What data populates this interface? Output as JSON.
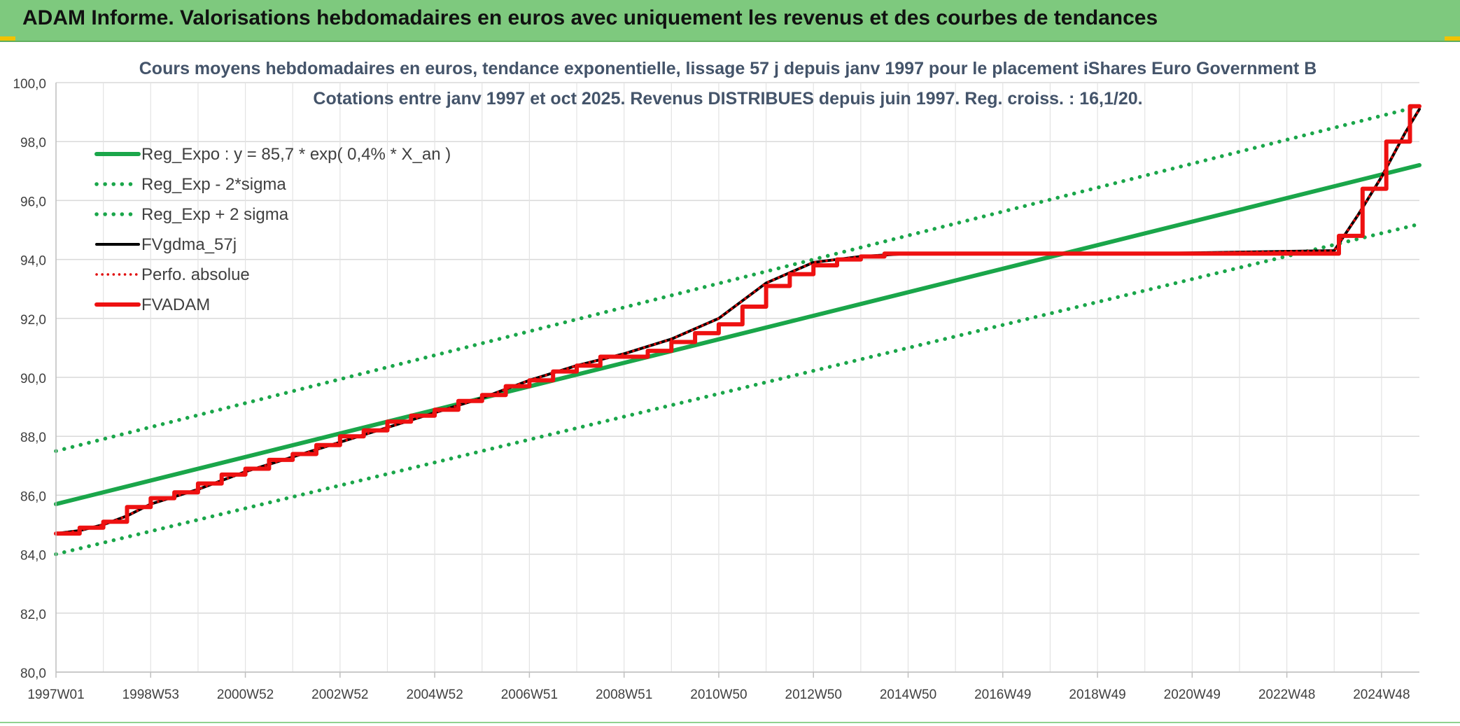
{
  "header": {
    "title": "ADAM Informe. Valorisations hebdomadaires en euros avec uniquement les revenus et des courbes de tendances"
  },
  "chart_data": {
    "type": "line",
    "title": "Cours moyens hebdomadaires en euros, tendance exponentielle, lissage 57 j depuis janv 1997 pour le placement iShares Euro Government B",
    "subtitle": "Cotations entre janv 1997 et oct 2025. Revenus DISTRIBUES depuis juin 1997. Reg. croiss. : 16,1/20.",
    "xlabel": "",
    "ylabel": "",
    "ylim": [
      80,
      100
    ],
    "xlim": [
      1997.0,
      2025.8
    ],
    "y_ticks": [
      "80,0",
      "82,0",
      "84,0",
      "86,0",
      "88,0",
      "90,0",
      "92,0",
      "94,0",
      "96,0",
      "98,0",
      "100,0"
    ],
    "x_ticks": [
      {
        "label": "1997W01",
        "x": 1997.0
      },
      {
        "label": "1998W53",
        "x": 1999.0
      },
      {
        "label": "2000W52",
        "x": 2001.0
      },
      {
        "label": "2002W52",
        "x": 2003.0
      },
      {
        "label": "2004W52",
        "x": 2005.0
      },
      {
        "label": "2006W51",
        "x": 2007.0
      },
      {
        "label": "2008W51",
        "x": 2009.0
      },
      {
        "label": "2010W50",
        "x": 2011.0
      },
      {
        "label": "2012W50",
        "x": 2013.0
      },
      {
        "label": "2014W50",
        "x": 2015.0
      },
      {
        "label": "2016W49",
        "x": 2017.0
      },
      {
        "label": "2018W49",
        "x": 2019.0
      },
      {
        "label": "2020W49",
        "x": 2021.0
      },
      {
        "label": "2022W48",
        "x": 2023.0
      },
      {
        "label": "2024W48",
        "x": 2025.0
      }
    ],
    "grid": true,
    "legend_position": "top-left",
    "colors": {
      "reg": "#1aa64a",
      "sigma": "#1aa64a",
      "fvgdma": "#000000",
      "perfo": "#e00000",
      "fvadam": "#ee1111"
    },
    "series": [
      {
        "name": "Reg_Expo : y = 85,7 * exp( 0,4% *  X_an )",
        "style": "solid-green",
        "x": [
          1997.0,
          2025.8
        ],
        "values": [
          85.7,
          97.2
        ]
      },
      {
        "name": "Reg_Exp - 2*sigma",
        "style": "dotted-green",
        "x": [
          1997.0,
          2025.8
        ],
        "values": [
          84.0,
          95.2
        ]
      },
      {
        "name": "Reg_Exp + 2 sigma",
        "style": "dotted-green",
        "x": [
          1997.0,
          2025.8
        ],
        "values": [
          87.5,
          99.2
        ]
      },
      {
        "name": "FVgdma_57j",
        "style": "solid-black",
        "x": [
          1997.0,
          1997.5,
          1998.0,
          1998.5,
          1999.0,
          2000.0,
          2001.0,
          2002.0,
          2003.0,
          2004.0,
          2005.0,
          2006.0,
          2007.0,
          2008.0,
          2009.0,
          2010.0,
          2011.0,
          2012.0,
          2013.0,
          2014.0,
          2015.0,
          2020.0,
          2024.0,
          2024.5,
          2025.0,
          2025.5,
          2025.8
        ],
        "values": [
          84.7,
          84.8,
          85.0,
          85.3,
          85.7,
          86.2,
          86.8,
          87.3,
          87.8,
          88.3,
          88.8,
          89.3,
          89.9,
          90.4,
          90.8,
          91.3,
          92.0,
          93.2,
          93.9,
          94.1,
          94.2,
          94.2,
          94.3,
          95.5,
          96.8,
          98.3,
          99.1
        ]
      },
      {
        "name": "Perfo. absolue",
        "style": "dotted-red",
        "x": [
          1997.0,
          1997.5,
          1998.0,
          1998.5,
          1999.0,
          2000.0,
          2001.0,
          2002.0,
          2003.0,
          2004.0,
          2005.0,
          2006.0,
          2007.0,
          2008.0,
          2009.0,
          2010.0,
          2011.0,
          2012.0,
          2013.0,
          2014.0,
          2015.0,
          2020.0,
          2024.0,
          2024.5,
          2025.0,
          2025.5,
          2025.8
        ],
        "values": [
          84.7,
          84.8,
          85.0,
          85.3,
          85.7,
          86.2,
          86.8,
          87.3,
          87.8,
          88.3,
          88.8,
          89.3,
          89.9,
          90.4,
          90.8,
          91.3,
          92.0,
          93.2,
          93.9,
          94.1,
          94.2,
          94.2,
          94.3,
          95.5,
          96.8,
          98.3,
          99.1
        ]
      },
      {
        "name": "FVADAM",
        "style": "step-red",
        "x": [
          1997.0,
          1997.5,
          1998.0,
          1998.5,
          1999.0,
          1999.5,
          2000.0,
          2000.5,
          2001.0,
          2001.5,
          2002.0,
          2002.5,
          2003.0,
          2003.5,
          2004.0,
          2004.5,
          2005.0,
          2005.5,
          2006.0,
          2006.5,
          2007.0,
          2007.5,
          2008.0,
          2008.5,
          2009.0,
          2009.5,
          2010.0,
          2010.5,
          2011.0,
          2011.5,
          2012.0,
          2012.5,
          2013.0,
          2013.5,
          2014.0,
          2014.5,
          2024.1,
          2024.6,
          2025.1,
          2025.6,
          2025.8
        ],
        "values": [
          84.7,
          84.9,
          85.1,
          85.6,
          85.9,
          86.1,
          86.4,
          86.7,
          86.9,
          87.2,
          87.4,
          87.7,
          88.0,
          88.2,
          88.5,
          88.7,
          88.9,
          89.2,
          89.4,
          89.7,
          89.9,
          90.2,
          90.4,
          90.7,
          90.7,
          90.9,
          91.2,
          91.5,
          91.8,
          92.4,
          93.1,
          93.5,
          93.8,
          94.0,
          94.1,
          94.2,
          94.8,
          96.4,
          98.0,
          99.2,
          99.2
        ]
      }
    ]
  }
}
